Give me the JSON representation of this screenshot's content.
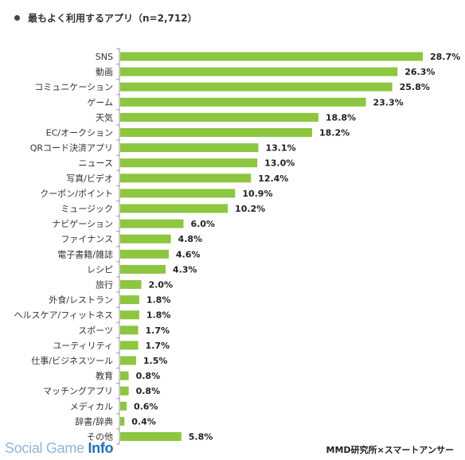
{
  "header": {
    "title": "最もよく利用するアプリ（n=2,712）"
  },
  "chart_data": {
    "type": "bar",
    "orientation": "horizontal",
    "categories": [
      "SNS",
      "動画",
      "コミュニケーション",
      "ゲーム",
      "天気",
      "EC/オークション",
      "QRコード決済アプリ",
      "ニュース",
      "写真/ビデオ",
      "クーポン/ポイント",
      "ミュージック",
      "ナビゲーション",
      "ファイナンス",
      "電子書籍/雑誌",
      "レシピ",
      "旅行",
      "外食/レストラン",
      "ヘルスケア/フィットネス",
      "スポーツ",
      "ユーティリティ",
      "仕事/ビジネスツール",
      "教育",
      "マッチングアプリ",
      "メディカル",
      "辞書/辞典",
      "その他"
    ],
    "values": [
      28.7,
      26.3,
      25.8,
      23.3,
      18.8,
      18.2,
      13.1,
      13.0,
      12.4,
      10.9,
      10.2,
      6.0,
      4.8,
      4.6,
      4.3,
      2.0,
      1.8,
      1.8,
      1.7,
      1.7,
      1.5,
      0.8,
      0.8,
      0.6,
      0.4,
      5.8
    ],
    "value_labels": [
      "28.7%",
      "26.3%",
      "25.8%",
      "23.3%",
      "18.8%",
      "18.2%",
      "13.1%",
      "13.0%",
      "12.4%",
      "10.9%",
      "10.2%",
      "6.0%",
      "4.8%",
      "4.6%",
      "4.3%",
      "2.0%",
      "1.8%",
      "1.8%",
      "1.7%",
      "1.7%",
      "1.5%",
      "0.8%",
      "0.8%",
      "0.6%",
      "0.4%",
      "5.8%"
    ],
    "unit": "%",
    "bar_color": "#8dc63f",
    "axis_color": "#9a9a9a",
    "grid": false,
    "legend": "none"
  },
  "footer": {
    "watermark_prefix": "Social Game ",
    "watermark_suffix": "Info",
    "source": "MMD研究所×スマートアンサー"
  }
}
